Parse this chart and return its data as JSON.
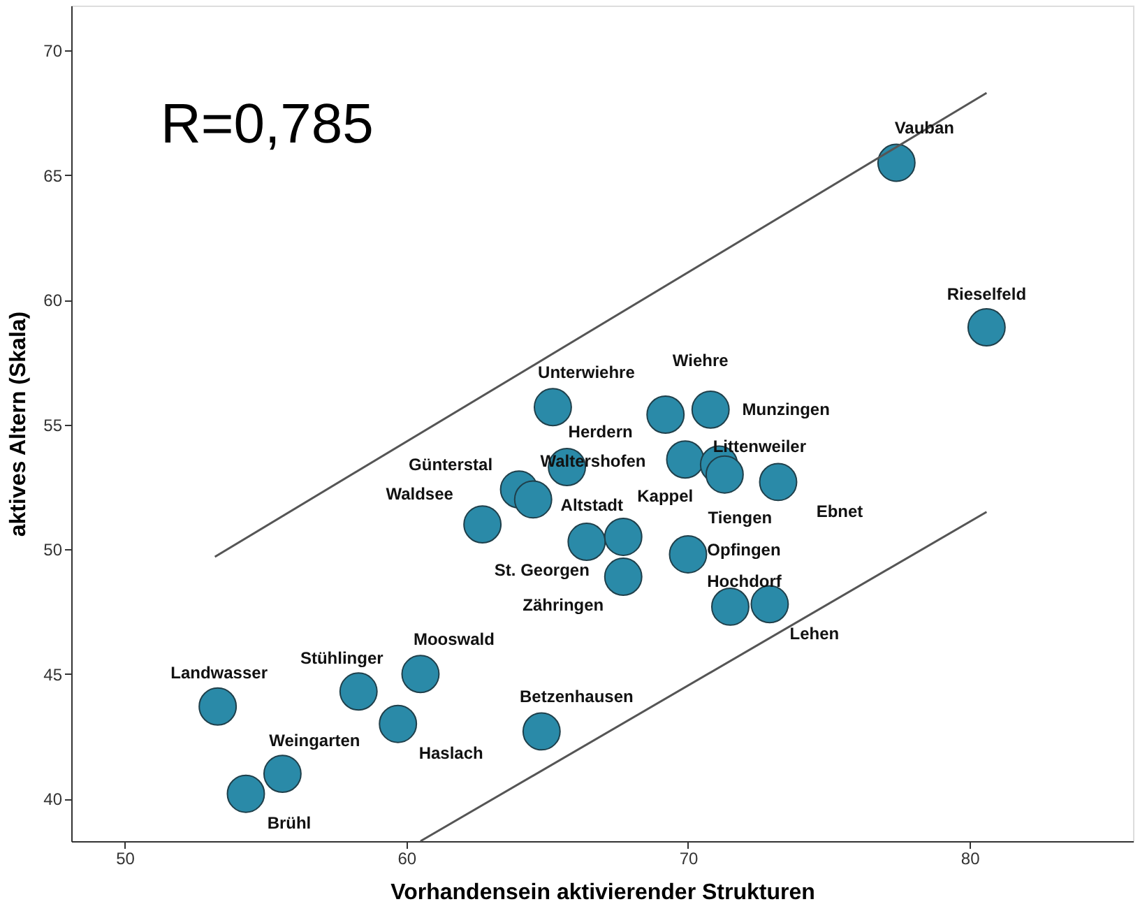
{
  "chart_data": {
    "type": "scatter",
    "xlabel": "Vorhandensein aktivierender Strukturen",
    "ylabel": "aktives Altern (Skala)",
    "xlim": [
      48.1,
      85.8
    ],
    "xticks": [
      50,
      60,
      70,
      80
    ],
    "ylim": [
      38.3,
      71.8
    ],
    "yticks": [
      40,
      45,
      50,
      55,
      60,
      65,
      70
    ],
    "grid": false,
    "marker": "circle",
    "series": [
      {
        "color": "#2a8aa8",
        "x": [
          77.4,
          80.6,
          65.2,
          69.2,
          70.8,
          69.9,
          65.7,
          71.1,
          71.3,
          73.2,
          64.0,
          64.5,
          62.7,
          66.4,
          67.7,
          67.7,
          70.0,
          71.5,
          72.9,
          64.8,
          53.3,
          58.3,
          60.5,
          59.7,
          55.6,
          54.3
        ],
        "values": [
          65.5,
          58.9,
          55.7,
          55.4,
          55.6,
          53.6,
          53.3,
          53.4,
          53.0,
          52.7,
          52.4,
          52.0,
          51.0,
          50.3,
          50.5,
          48.9,
          49.8,
          47.7,
          47.8,
          42.7,
          43.7,
          44.3,
          45.0,
          43.0,
          41.0,
          40.2
        ]
      },
      {
        "type": "line",
        "marker": "none",
        "color": "#555555",
        "x": [
          53.2,
          80.6
        ],
        "values": [
          49.7,
          68.3
        ]
      },
      {
        "type": "line",
        "marker": "none",
        "color": "#555555",
        "x": [
          60.5,
          80.6
        ],
        "values": [
          38.3,
          51.5
        ]
      }
    ],
    "annotations": [
      {
        "text": "Vauban",
        "x": 77.4,
        "y": 65.5
      },
      {
        "text": "Rieselfeld",
        "x": 80.6,
        "y": 58.9
      },
      {
        "text": "Unterwiehre",
        "x": 65.2,
        "y": 55.7
      },
      {
        "text": "Wiehre",
        "x": 69.2,
        "y": 55.4
      },
      {
        "text": "Munzingen",
        "x": 70.8,
        "y": 55.6
      },
      {
        "text": "Herdern",
        "x": 65.7,
        "y": 53.3
      },
      {
        "text": "Waltershofen",
        "x": 69.9,
        "y": 53.6
      },
      {
        "text": "Littenweiler",
        "x": 71.1,
        "y": 53.4
      },
      {
        "text": "Tiengen",
        "x": 71.3,
        "y": 53.0
      },
      {
        "text": "Ebnet",
        "x": 73.2,
        "y": 52.7
      },
      {
        "text": "Günterstal",
        "x": 64.0,
        "y": 52.4
      },
      {
        "text": "Altstadt",
        "x": 64.5,
        "y": 52.0
      },
      {
        "text": "Waldsee",
        "x": 62.7,
        "y": 51.0
      },
      {
        "text": "St. Georgen",
        "x": 66.4,
        "y": 50.3
      },
      {
        "text": "Kappel",
        "x": 67.7,
        "y": 50.5
      },
      {
        "text": "Zähringen",
        "x": 67.7,
        "y": 48.9
      },
      {
        "text": "Opfingen",
        "x": 70.0,
        "y": 49.8
      },
      {
        "text": "Hochdorf",
        "x": 71.5,
        "y": 47.7
      },
      {
        "text": "Lehen",
        "x": 72.9,
        "y": 47.8
      },
      {
        "text": "Betzenhausen",
        "x": 64.8,
        "y": 42.7
      },
      {
        "text": "Landwasser",
        "x": 53.3,
        "y": 43.7
      },
      {
        "text": "Stühlinger",
        "x": 58.3,
        "y": 44.3
      },
      {
        "text": "Mooswald",
        "x": 60.5,
        "y": 45.0
      },
      {
        "text": "Haslach",
        "x": 59.7,
        "y": 43.0
      },
      {
        "text": "Weingarten",
        "x": 55.6,
        "y": 41.0
      },
      {
        "text": "Brühl",
        "x": 54.3,
        "y": 40.2
      },
      "R=0,785"
    ]
  }
}
